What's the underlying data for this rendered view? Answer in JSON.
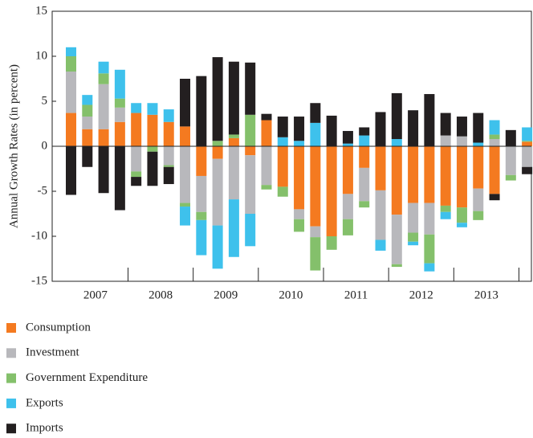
{
  "chart_data": {
    "type": "stacked_bar",
    "ylabel": "Annual Growth Rates (in percent)",
    "categories": [
      null,
      null,
      null,
      null,
      null,
      null,
      null,
      null,
      null,
      null,
      null,
      null,
      null,
      null,
      null,
      null,
      null,
      null,
      null,
      null,
      null,
      null,
      null,
      null,
      null,
      null,
      null,
      null,
      null
    ],
    "category_groups": [
      "2007",
      "2008",
      "2009",
      "2010",
      "2011",
      "2012",
      "2013"
    ],
    "ylim": [
      -15,
      15
    ],
    "yticks": [
      -15,
      -10,
      -5,
      0,
      5,
      10,
      15
    ],
    "series": [
      {
        "name": "Consumption",
        "color": "#f47a20",
        "values": [
          3.7,
          1.9,
          1.9,
          2.7,
          3.7,
          3.5,
          2.7,
          2.2,
          -3.3,
          -1.4,
          0.9,
          -1.0,
          2.9,
          -4.5,
          -7.0,
          -8.9,
          -10.0,
          -5.3,
          -2.4,
          -4.9,
          -7.6,
          -6.3,
          -6.3,
          -6.6,
          -6.8,
          -4.7,
          -5.3,
          0,
          0.5
        ]
      },
      {
        "name": "Investment",
        "color": "#b8b8bc",
        "values": [
          4.6,
          1.4,
          5.0,
          1.6,
          -2.8,
          0,
          -2.1,
          -6.3,
          -4.0,
          -7.4,
          -5.9,
          -6.5,
          -4.3,
          0,
          -1.1,
          -1.2,
          0,
          -2.8,
          -3.7,
          -5.5,
          -5.5,
          -3.3,
          -3.5,
          1.2,
          1.1,
          -2.5,
          0.8,
          -3.2,
          -2.3
        ]
      },
      {
        "name": "Government Expenditure",
        "color": "#84c06b",
        "values": [
          1.7,
          1.3,
          1.2,
          1.0,
          -0.6,
          -0.6,
          -0.2,
          -0.4,
          -0.9,
          0.6,
          0.4,
          3.5,
          -0.5,
          -1.1,
          -1.4,
          -3.7,
          -1.5,
          -1.8,
          -0.7,
          0,
          -0.3,
          -1.0,
          -3.2,
          -0.7,
          -1.7,
          -1.0,
          0.5,
          -0.6,
          0.1
        ]
      },
      {
        "name": "Exports",
        "color": "#3ec1ec",
        "values": [
          1.0,
          1.1,
          1.3,
          3.2,
          1.1,
          1.3,
          1.4,
          -2.1,
          -3.9,
          -4.8,
          -6.4,
          -3.6,
          0,
          1.0,
          0.6,
          2.6,
          0,
          0.3,
          1.2,
          -1.2,
          0.8,
          -0.4,
          -0.9,
          -0.8,
          -0.5,
          0.4,
          1.6,
          0,
          1.5
        ]
      },
      {
        "name": "Imports",
        "color": "#231f20",
        "values": [
          -5.4,
          -2.3,
          -5.2,
          -7.1,
          -1.0,
          -3.8,
          -1.9,
          5.3,
          7.8,
          9.3,
          8.1,
          5.8,
          0.7,
          2.3,
          2.7,
          2.2,
          3.4,
          1.4,
          0.9,
          3.8,
          5.1,
          4.0,
          5.8,
          2.5,
          2.2,
          3.3,
          -0.7,
          1.8,
          -0.8
        ]
      }
    ]
  }
}
